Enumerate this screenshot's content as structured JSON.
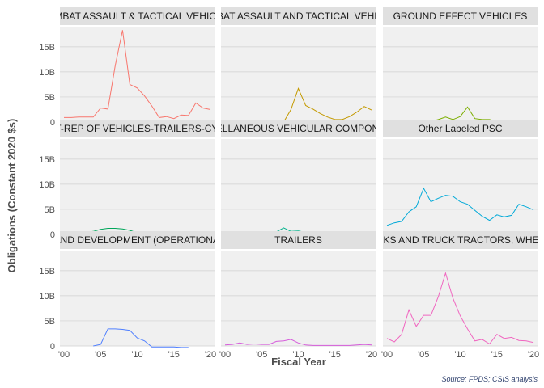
{
  "chart_data": {
    "type": "line",
    "facet": true,
    "ylabel": "Obligations (Constant 2020 $s)",
    "xlabel": "Fiscal Year",
    "caption": "Source: FPDS; CSIS analysis",
    "xlim": [
      2000,
      2020
    ],
    "ylim": [
      0,
      19
    ],
    "x_ticks": [
      {
        "value": 2000,
        "label": "'00"
      },
      {
        "value": 2005,
        "label": "'05"
      },
      {
        "value": 2010,
        "label": "'10"
      },
      {
        "value": 2015,
        "label": "'15"
      },
      {
        "value": 2020,
        "label": "'20"
      }
    ],
    "y_ticks": [
      {
        "value": 0,
        "label": "0"
      },
      {
        "value": 5,
        "label": "5B"
      },
      {
        "value": 10,
        "label": "10B"
      },
      {
        "value": 15,
        "label": "15B"
      }
    ],
    "grid": true,
    "legend": "none",
    "panels": [
      {
        "title": "COMBAT ASSAULT & TACTICAL VEHICLES",
        "color": "#f8766d",
        "x": [
          2000,
          2001,
          2002,
          2003,
          2004,
          2005,
          2006,
          2007,
          2008,
          2009,
          2010,
          2011,
          2012,
          2013,
          2014,
          2015,
          2016,
          2017,
          2018,
          2019,
          2020
        ],
        "y": [
          0.9,
          0.9,
          1.0,
          1.0,
          1.0,
          2.8,
          2.6,
          11.2,
          18.3,
          7.5,
          6.8,
          5.2,
          3.2,
          0.9,
          1.1,
          0.7,
          1.4,
          1.3,
          3.8,
          2.8,
          2.5
        ]
      },
      {
        "title": "COMBAT ASSAULT AND TACTICAL VEHICLES",
        "color": "#c49a00",
        "x": [
          2007,
          2008,
          2009,
          2010,
          2011,
          2012,
          2013,
          2014,
          2015,
          2016,
          2017,
          2018,
          2019,
          2020
        ],
        "y": [
          0.0,
          0.0,
          2.5,
          6.7,
          3.3,
          2.6,
          1.7,
          1.0,
          0.5,
          0.5,
          1.1,
          2.0,
          3.1,
          2.4
        ]
      },
      {
        "title": "GROUND EFFECT VEHICLES",
        "color": "#7cae00",
        "x": [
          2000,
          2001,
          2002,
          2003,
          2004,
          2005,
          2006,
          2007,
          2008,
          2009,
          2010,
          2011,
          2012,
          2013,
          2014,
          2015,
          2016,
          2017,
          2018,
          2019,
          2020
        ],
        "y": [
          0.0,
          0.0,
          0.0,
          0.0,
          0.0,
          0.3,
          0.1,
          0.5,
          1.0,
          0.5,
          1.1,
          3.0,
          0.7,
          0.5,
          0.5,
          0.1,
          0.4,
          0.2,
          0.1,
          0.2,
          0.1
        ]
      },
      {
        "title": "MAINT-REP OF VEHICLES-TRAILERS-CYCLES",
        "color": "#00a65a",
        "x": [
          2000,
          2001,
          2002,
          2003,
          2004,
          2005,
          2006,
          2007,
          2008,
          2009,
          2010,
          2011,
          2012,
          2013,
          2014,
          2015,
          2016,
          2017,
          2018,
          2019,
          2020
        ],
        "y": [
          0.3,
          0.3,
          0.3,
          0.4,
          0.6,
          1.0,
          1.2,
          1.2,
          1.1,
          0.8,
          0.3,
          0.1,
          0.2,
          0.1,
          0.1,
          0.1,
          0.1,
          0.2,
          0.3,
          0.5,
          0.3
        ]
      },
      {
        "title": "MISCELLANEOUS VEHICULAR COMPONENTS",
        "color": "#00b18a",
        "x": [
          2000,
          2001,
          2002,
          2003,
          2004,
          2005,
          2006,
          2007,
          2008,
          2009,
          2010,
          2011,
          2012,
          2013,
          2014,
          2015,
          2016,
          2017,
          2018,
          2019,
          2020
        ],
        "y": [
          0.0,
          0.0,
          0.0,
          0.0,
          0.0,
          0.2,
          0.2,
          0.5,
          1.3,
          0.6,
          0.7,
          0.4,
          0.5,
          0.2,
          0.3,
          0.2,
          0.2,
          0.1,
          0.1,
          0.3,
          0.1
        ]
      },
      {
        "title": "Other Labeled PSC",
        "color": "#00a9d8",
        "x": [
          2000,
          2001,
          2002,
          2003,
          2004,
          2005,
          2006,
          2007,
          2008,
          2009,
          2010,
          2011,
          2012,
          2013,
          2014,
          2015,
          2016,
          2017,
          2018,
          2019,
          2020
        ],
        "y": [
          1.8,
          2.3,
          2.6,
          4.5,
          5.5,
          9.2,
          6.5,
          7.2,
          7.8,
          7.6,
          6.5,
          6.0,
          4.8,
          3.6,
          2.8,
          3.9,
          3.5,
          3.8,
          6.0,
          5.5,
          4.9
        ]
      },
      {
        "title": "RESEARCH AND DEVELOPMENT (OPERATIONAL SYSTEMS)",
        "color": "#4f7fff",
        "x": [
          2004,
          2005,
          2006,
          2007,
          2008,
          2009,
          2010,
          2011,
          2012,
          2013,
          2014,
          2015,
          2016,
          2017
        ],
        "y": [
          0.0,
          0.3,
          3.4,
          3.4,
          3.3,
          3.1,
          1.6,
          1.0,
          -0.2,
          -0.2,
          -0.2,
          -0.2,
          -0.3,
          -0.3
        ]
      },
      {
        "title": "TRAILERS",
        "color": "#d65ddb",
        "x": [
          2000,
          2001,
          2002,
          2003,
          2004,
          2005,
          2006,
          2007,
          2008,
          2009,
          2010,
          2011,
          2012,
          2013,
          2014,
          2015,
          2016,
          2017,
          2018,
          2019,
          2020
        ],
        "y": [
          0.2,
          0.3,
          0.6,
          0.3,
          0.4,
          0.3,
          0.3,
          0.9,
          1.0,
          1.3,
          0.6,
          0.2,
          0.1,
          0.1,
          0.1,
          0.1,
          0.1,
          0.1,
          0.2,
          0.3,
          0.2
        ]
      },
      {
        "title": "TRUCKS AND TRUCK TRACTORS, WHEELED",
        "color": "#f066c0",
        "x": [
          2000,
          2001,
          2002,
          2003,
          2004,
          2005,
          2006,
          2007,
          2008,
          2009,
          2010,
          2011,
          2012,
          2013,
          2014,
          2015,
          2016,
          2017,
          2018,
          2019,
          2020
        ],
        "y": [
          1.5,
          0.8,
          2.3,
          7.2,
          3.9,
          6.1,
          6.1,
          9.8,
          14.5,
          9.5,
          6.0,
          3.4,
          1.0,
          1.3,
          0.4,
          2.3,
          1.5,
          1.7,
          1.1,
          1.0,
          0.7
        ]
      }
    ]
  }
}
